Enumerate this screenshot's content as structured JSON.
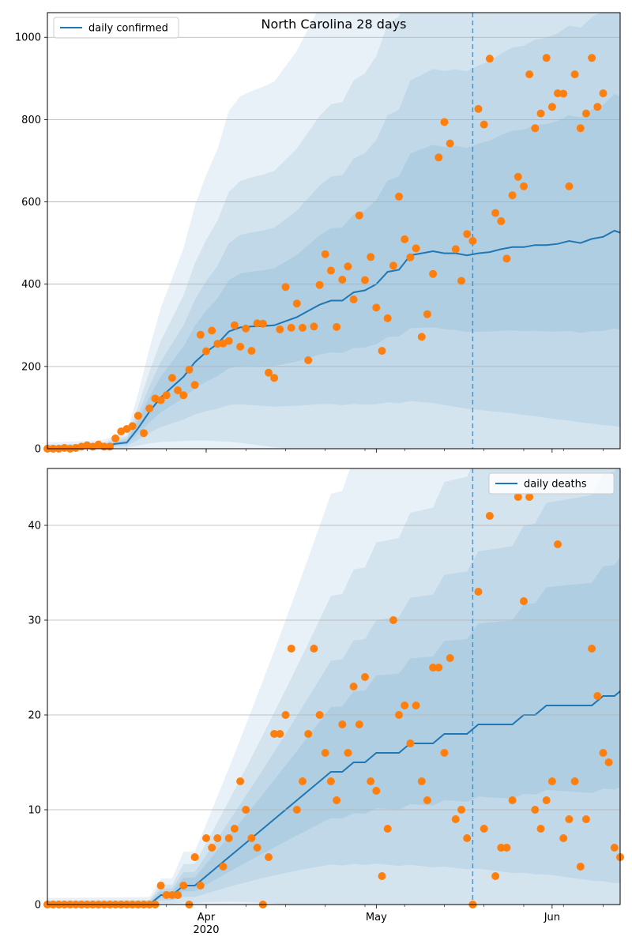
{
  "chart_data": [
    {
      "type": "line",
      "title": "North Carolina 28 days",
      "xlabel": "",
      "ylabel": "",
      "x_unit": "date",
      "xlim": [
        "2020-03-04",
        "2020-06-13"
      ],
      "ylim": [
        0,
        1060
      ],
      "yticks": [
        0,
        200,
        400,
        600,
        800,
        1000
      ],
      "xticks": [
        {
          "date": "2020-04-01",
          "label": "Apr",
          "sublabel": "2020"
        },
        {
          "date": "2020-05-01",
          "label": "May",
          "sublabel": ""
        },
        {
          "date": "2020-06-01",
          "label": "Jun",
          "sublabel": ""
        }
      ],
      "grid": "y",
      "legend": {
        "position": "top-left",
        "entries": [
          "daily confirmed"
        ]
      },
      "forecast_start": "2020-05-18",
      "colors": {
        "line": "#1f77b4",
        "points": "#ff7f0e",
        "band": "#1f77b4"
      },
      "series": [
        {
          "name": "daily confirmed",
          "kind": "line",
          "x": [
            "2020-03-04",
            "2020-03-06",
            "2020-03-08",
            "2020-03-10",
            "2020-03-12",
            "2020-03-14",
            "2020-03-16",
            "2020-03-18",
            "2020-03-20",
            "2020-03-22",
            "2020-03-24",
            "2020-03-26",
            "2020-03-28",
            "2020-03-30",
            "2020-04-01",
            "2020-04-03",
            "2020-04-05",
            "2020-04-07",
            "2020-04-09",
            "2020-04-11",
            "2020-04-13",
            "2020-04-15",
            "2020-04-17",
            "2020-04-19",
            "2020-04-21",
            "2020-04-23",
            "2020-04-25",
            "2020-04-27",
            "2020-04-29",
            "2020-05-01",
            "2020-05-03",
            "2020-05-05",
            "2020-05-07",
            "2020-05-09",
            "2020-05-11",
            "2020-05-13",
            "2020-05-15",
            "2020-05-17",
            "2020-05-19",
            "2020-05-21",
            "2020-05-23",
            "2020-05-25",
            "2020-05-27",
            "2020-05-29",
            "2020-05-31",
            "2020-06-02",
            "2020-06-04",
            "2020-06-06",
            "2020-06-08",
            "2020-06-10",
            "2020-06-12",
            "2020-06-13"
          ],
          "y": [
            0,
            0,
            1,
            2,
            3,
            5,
            12,
            15,
            50,
            90,
            125,
            150,
            175,
            210,
            235,
            255,
            285,
            295,
            297,
            298,
            300,
            310,
            320,
            335,
            350,
            360,
            360,
            380,
            385,
            400,
            430,
            435,
            470,
            475,
            480,
            475,
            475,
            470,
            475,
            478,
            485,
            490,
            490,
            495,
            495,
            498,
            505,
            500,
            510,
            515,
            530,
            525
          ]
        },
        {
          "name": "",
          "kind": "points",
          "x": [
            "2020-03-04",
            "2020-03-05",
            "2020-03-06",
            "2020-03-07",
            "2020-03-08",
            "2020-03-09",
            "2020-03-10",
            "2020-03-11",
            "2020-03-12",
            "2020-03-13",
            "2020-03-14",
            "2020-03-15",
            "2020-03-16",
            "2020-03-17",
            "2020-03-18",
            "2020-03-19",
            "2020-03-20",
            "2020-03-21",
            "2020-03-22",
            "2020-03-23",
            "2020-03-24",
            "2020-03-25",
            "2020-03-26",
            "2020-03-27",
            "2020-03-28",
            "2020-03-29",
            "2020-03-30",
            "2020-03-31",
            "2020-04-01",
            "2020-04-02",
            "2020-04-03",
            "2020-04-04",
            "2020-04-05",
            "2020-04-06",
            "2020-04-07",
            "2020-04-08",
            "2020-04-09",
            "2020-04-10",
            "2020-04-11",
            "2020-04-12",
            "2020-04-13",
            "2020-04-14",
            "2020-04-15",
            "2020-04-16",
            "2020-04-17",
            "2020-04-18",
            "2020-04-19",
            "2020-04-20",
            "2020-04-21",
            "2020-04-22",
            "2020-04-23",
            "2020-04-24",
            "2020-04-25",
            "2020-04-26",
            "2020-04-27",
            "2020-04-28",
            "2020-04-29",
            "2020-04-30",
            "2020-05-01",
            "2020-05-02",
            "2020-05-03",
            "2020-05-04",
            "2020-05-05",
            "2020-05-06",
            "2020-05-07",
            "2020-05-08",
            "2020-05-09",
            "2020-05-10",
            "2020-05-11",
            "2020-05-12",
            "2020-05-13",
            "2020-05-14",
            "2020-05-15",
            "2020-05-16",
            "2020-05-17",
            "2020-05-18",
            "2020-05-19",
            "2020-05-20",
            "2020-05-21",
            "2020-05-22",
            "2020-05-23",
            "2020-05-24",
            "2020-05-25",
            "2020-05-26",
            "2020-05-27",
            "2020-05-28",
            "2020-05-29",
            "2020-05-30",
            "2020-05-31",
            "2020-06-01",
            "2020-06-02",
            "2020-06-03",
            "2020-06-04",
            "2020-06-05",
            "2020-06-06",
            "2020-06-07",
            "2020-06-08",
            "2020-06-09",
            "2020-06-10"
          ],
          "y": [
            0,
            0,
            0,
            2,
            0,
            2,
            5,
            8,
            5,
            10,
            5,
            5,
            25,
            42,
            48,
            55,
            80,
            38,
            98,
            122,
            118,
            130,
            172,
            142,
            130,
            192,
            155,
            277,
            237,
            287,
            255,
            256,
            262,
            300,
            248,
            292,
            238,
            305,
            304,
            185,
            172,
            290,
            393,
            294,
            353,
            294,
            215,
            297,
            398,
            473,
            433,
            296,
            411,
            443,
            363,
            567,
            410,
            466,
            343,
            238,
            317,
            445,
            613,
            509,
            465,
            487,
            272,
            327,
            425,
            708,
            794,
            742,
            485,
            408,
            522,
            505,
            826,
            788,
            948,
            573,
            553,
            462,
            616,
            661,
            638,
            910,
            779,
            815,
            950,
            831,
            864,
            863,
            638,
            910,
            779,
            815,
            950,
            831,
            864
          ]
        }
      ]
    },
    {
      "type": "line",
      "title": "",
      "xlabel": "",
      "ylabel": "",
      "x_unit": "date",
      "xlim": [
        "2020-03-04",
        "2020-06-13"
      ],
      "ylim": [
        0,
        46
      ],
      "yticks": [
        0,
        10,
        20,
        30,
        40
      ],
      "xticks": [
        {
          "date": "2020-04-01",
          "label": "Apr",
          "sublabel": "2020"
        },
        {
          "date": "2020-05-01",
          "label": "May",
          "sublabel": ""
        },
        {
          "date": "2020-06-01",
          "label": "Jun",
          "sublabel": ""
        }
      ],
      "grid": "y",
      "legend": {
        "position": "top-right",
        "entries": [
          "daily deaths"
        ]
      },
      "forecast_start": "2020-05-18",
      "colors": {
        "line": "#1f77b4",
        "points": "#ff7f0e",
        "band": "#1f77b4"
      },
      "series": [
        {
          "name": "daily deaths",
          "kind": "line",
          "x": [
            "2020-03-04",
            "2020-03-10",
            "2020-03-16",
            "2020-03-22",
            "2020-03-24",
            "2020-03-26",
            "2020-03-28",
            "2020-03-30",
            "2020-04-01",
            "2020-04-03",
            "2020-04-05",
            "2020-04-07",
            "2020-04-09",
            "2020-04-11",
            "2020-04-13",
            "2020-04-15",
            "2020-04-17",
            "2020-04-19",
            "2020-04-21",
            "2020-04-23",
            "2020-04-25",
            "2020-04-27",
            "2020-04-29",
            "2020-05-01",
            "2020-05-03",
            "2020-05-05",
            "2020-05-07",
            "2020-05-09",
            "2020-05-11",
            "2020-05-13",
            "2020-05-15",
            "2020-05-17",
            "2020-05-19",
            "2020-05-21",
            "2020-05-23",
            "2020-05-25",
            "2020-05-27",
            "2020-05-29",
            "2020-05-31",
            "2020-06-02",
            "2020-06-04",
            "2020-06-06",
            "2020-06-08",
            "2020-06-10",
            "2020-06-12",
            "2020-06-13"
          ],
          "y": [
            0,
            0,
            0,
            0,
            1,
            1,
            2,
            2,
            3,
            4,
            5,
            6,
            7,
            8,
            9,
            10,
            11,
            12,
            13,
            14,
            14,
            15,
            15,
            16,
            16,
            16,
            17,
            17,
            17,
            18,
            18,
            18,
            19,
            19,
            19,
            19,
            20,
            20,
            21,
            21,
            21,
            21,
            21,
            22,
            22,
            22.5
          ]
        },
        {
          "name": "",
          "kind": "points",
          "x": [
            "2020-03-04",
            "2020-03-05",
            "2020-03-06",
            "2020-03-07",
            "2020-03-08",
            "2020-03-09",
            "2020-03-10",
            "2020-03-11",
            "2020-03-12",
            "2020-03-13",
            "2020-03-14",
            "2020-03-15",
            "2020-03-16",
            "2020-03-17",
            "2020-03-18",
            "2020-03-19",
            "2020-03-20",
            "2020-03-21",
            "2020-03-22",
            "2020-03-23",
            "2020-03-24",
            "2020-03-25",
            "2020-03-26",
            "2020-03-27",
            "2020-03-28",
            "2020-03-29",
            "2020-03-30",
            "2020-03-31",
            "2020-04-01",
            "2020-04-02",
            "2020-04-03",
            "2020-04-04",
            "2020-04-05",
            "2020-04-06",
            "2020-04-07",
            "2020-04-08",
            "2020-04-09",
            "2020-04-10",
            "2020-04-11",
            "2020-04-12",
            "2020-04-13",
            "2020-04-14",
            "2020-04-15",
            "2020-04-16",
            "2020-04-17",
            "2020-04-18",
            "2020-04-19",
            "2020-04-20",
            "2020-04-21",
            "2020-04-22",
            "2020-04-23",
            "2020-04-24",
            "2020-04-25",
            "2020-04-26",
            "2020-04-27",
            "2020-04-28",
            "2020-04-29",
            "2020-04-30",
            "2020-05-01",
            "2020-05-02",
            "2020-05-03",
            "2020-05-04",
            "2020-05-05",
            "2020-05-06",
            "2020-05-07",
            "2020-05-08",
            "2020-05-09",
            "2020-05-10",
            "2020-05-11",
            "2020-05-12",
            "2020-05-13",
            "2020-05-14",
            "2020-05-15",
            "2020-05-16",
            "2020-05-17",
            "2020-05-18",
            "2020-05-19",
            "2020-05-20",
            "2020-05-21",
            "2020-05-22",
            "2020-05-23",
            "2020-05-24",
            "2020-05-25",
            "2020-05-26",
            "2020-05-27",
            "2020-05-28",
            "2020-05-29",
            "2020-05-30",
            "2020-05-31",
            "2020-06-01",
            "2020-06-02",
            "2020-06-03",
            "2020-06-04",
            "2020-06-05",
            "2020-06-06",
            "2020-06-07",
            "2020-06-08",
            "2020-06-09",
            "2020-06-10",
            "2020-06-11",
            "2020-06-12",
            "2020-06-13"
          ],
          "y": [
            0,
            0,
            0,
            0,
            0,
            0,
            0,
            0,
            0,
            0,
            0,
            0,
            0,
            0,
            0,
            0,
            0,
            0,
            0,
            0,
            2,
            1,
            1,
            1,
            2,
            0,
            5,
            2,
            7,
            6,
            7,
            4,
            7,
            8,
            13,
            10,
            7,
            6,
            0,
            5,
            18,
            18,
            20,
            27,
            10,
            13,
            18,
            27,
            20,
            16,
            13,
            11,
            19,
            16,
            23,
            19,
            24,
            13,
            12,
            3,
            8,
            30,
            20,
            21,
            17,
            21,
            13,
            11,
            25,
            25,
            16,
            26,
            9,
            10,
            7,
            0,
            33,
            8,
            41,
            3,
            6,
            6,
            11,
            43,
            32,
            43,
            10,
            8,
            11,
            13,
            38,
            7,
            9,
            13,
            4,
            9,
            27,
            22,
            16,
            15,
            6,
            5
          ]
        }
      ]
    }
  ]
}
